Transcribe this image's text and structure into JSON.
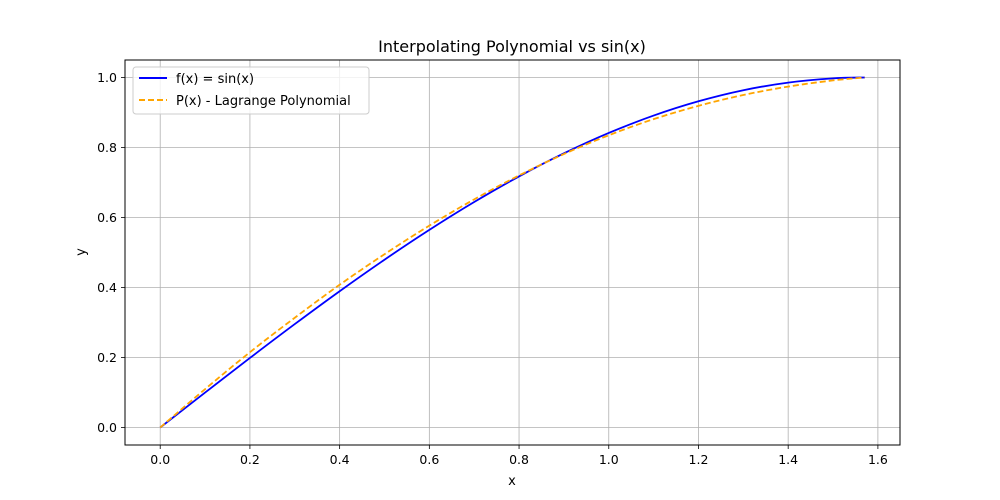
{
  "chart_data": {
    "type": "line",
    "title": "Interpolating Polynomial vs sin(x)",
    "xlabel": "x",
    "ylabel": "y",
    "xlim": [
      -0.0785,
      1.6493
    ],
    "ylim": [
      -0.05,
      1.05
    ],
    "xticks": [
      0.0,
      0.2,
      0.4,
      0.6,
      0.8,
      1.0,
      1.2,
      1.4,
      1.6
    ],
    "yticks": [
      0.0,
      0.2,
      0.4,
      0.6,
      0.8,
      1.0
    ],
    "xtick_labels": [
      "0.0",
      "0.2",
      "0.4",
      "0.6",
      "0.8",
      "1.0",
      "1.2",
      "1.4",
      "1.6"
    ],
    "ytick_labels": [
      "0.0",
      "0.2",
      "0.4",
      "0.6",
      "0.8",
      "1.0"
    ],
    "grid": true,
    "legend_position": "upper-left",
    "series": [
      {
        "name": "f(x) = sin(x)",
        "color": "#0000ff",
        "style": "solid",
        "x": [
          0.0,
          0.1,
          0.2,
          0.3,
          0.4,
          0.5,
          0.6,
          0.7,
          0.8,
          0.9,
          1.0,
          1.1,
          1.2,
          1.3,
          1.4,
          1.5,
          1.5708
        ],
        "y": [
          0.0,
          0.0998,
          0.1987,
          0.2955,
          0.3894,
          0.4794,
          0.5646,
          0.6442,
          0.7174,
          0.7833,
          0.8415,
          0.8912,
          0.932,
          0.9636,
          0.9854,
          0.9975,
          1.0
        ]
      },
      {
        "name": "P(x) - Lagrange Polynomial",
        "color": "#ffa500",
        "style": "dashed",
        "x": [
          0.0,
          0.1,
          0.2,
          0.3,
          0.4,
          0.5,
          0.6,
          0.7,
          0.8,
          0.9,
          1.0,
          1.1,
          1.2,
          1.3,
          1.4,
          1.5,
          1.5708
        ],
        "y": [
          0.0,
          0.1096,
          0.2151,
          0.3136,
          0.4078,
          0.4951,
          0.5768,
          0.6518,
          0.7201,
          0.7813,
          0.8349,
          0.881,
          0.919,
          0.95,
          0.974,
          0.9917,
          1.0
        ]
      }
    ]
  }
}
